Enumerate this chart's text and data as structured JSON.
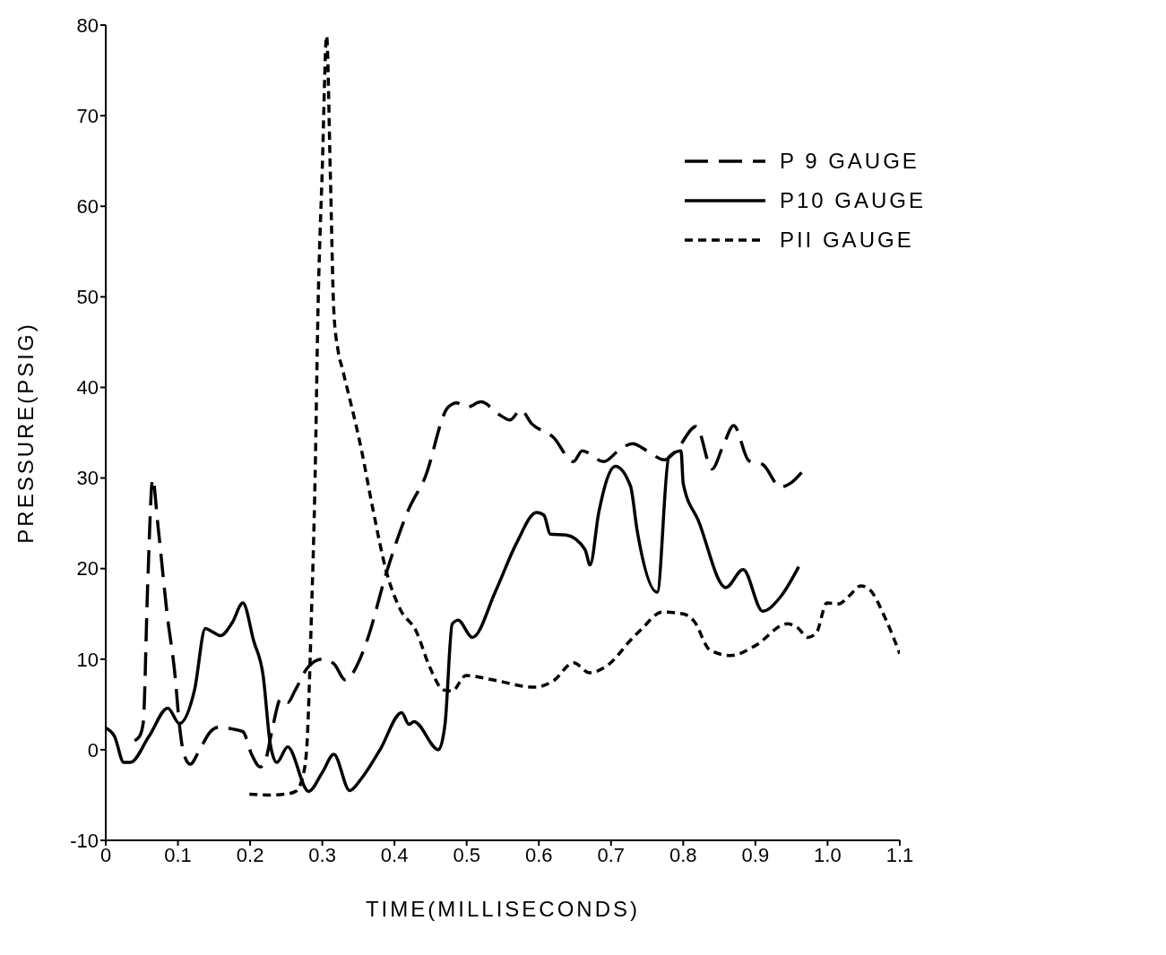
{
  "chart_data": {
    "type": "line",
    "xlabel": "TIME(MILLISECONDS)",
    "ylabel": "PRESSURE(PSIG)",
    "xlim": [
      0,
      1.1
    ],
    "xticks": [
      0,
      0.1,
      0.2,
      0.3,
      0.4,
      0.5,
      0.6,
      0.7,
      0.8,
      0.9,
      {
        "value": 1,
        "label": "1.0"
      },
      1.1
    ],
    "ylim": [
      -10,
      80
    ],
    "yticks": [
      -10,
      0,
      10,
      20,
      30,
      40,
      50,
      60,
      70,
      80
    ],
    "grid": false,
    "legend": "top right",
    "marker": "none",
    "series": [
      {
        "name": "P 9 GAUGE",
        "color": "#000000",
        "line_style": "dashed",
        "x": [
          0.04,
          0.047,
          0.052,
          0.058,
          0.065,
          0.072,
          0.085,
          0.096,
          0.102,
          0.108,
          0.117,
          0.13,
          0.145,
          0.157,
          0.175,
          0.19,
          0.202,
          0.214,
          0.222,
          0.23,
          0.243,
          0.252,
          0.262,
          0.28,
          0.3,
          0.316,
          0.332,
          0.351,
          0.363,
          0.389,
          0.42,
          0.442,
          0.474,
          0.486,
          0.5,
          0.52,
          0.545,
          0.56,
          0.575,
          0.59,
          0.62,
          0.648,
          0.66,
          0.69,
          0.71,
          0.73,
          0.75,
          0.774,
          0.79,
          0.818,
          0.84,
          0.855,
          0.87,
          0.891,
          0.91,
          0.935,
          0.95,
          0.967
        ],
        "values": [
          1,
          1.5,
          3,
          18,
          29.9,
          25,
          15,
          8.2,
          2.8,
          -0.4,
          -1.6,
          0,
          2,
          2.5,
          2.3,
          2,
          -0.5,
          -1.9,
          -1,
          2,
          5.7,
          5.2,
          6.5,
          9.1,
          10,
          9.5,
          7.7,
          9.8,
          12.3,
          19.6,
          26.6,
          30,
          37.8,
          38.3,
          37.8,
          38.4,
          37,
          36.4,
          37.5,
          36,
          34.5,
          31.8,
          33,
          31.8,
          33,
          33.8,
          33,
          32,
          33,
          35.7,
          31,
          33.5,
          35.8,
          31.9,
          31.5,
          29,
          29.5,
          30.9
        ]
      },
      {
        "name": "P10 GAUGE",
        "color": "#000000",
        "line_style": "solid",
        "x": [
          0,
          0.012,
          0.025,
          0.034,
          0.06,
          0.086,
          0.102,
          0.123,
          0.138,
          0.148,
          0.159,
          0.175,
          0.19,
          0.205,
          0.218,
          0.228,
          0.237,
          0.252,
          0.281,
          0.3,
          0.316,
          0.338,
          0.354,
          0.38,
          0.41,
          0.42,
          0.427,
          0.461,
          0.47,
          0.48,
          0.488,
          0.508,
          0.54,
          0.569,
          0.597,
          0.607,
          0.616,
          0.638,
          0.664,
          0.671,
          0.683,
          0.706,
          0.727,
          0.736,
          0.764,
          0.78,
          0.797,
          0.8,
          0.821,
          0.859,
          0.883,
          0.91,
          0.935,
          0.96
        ],
        "values": [
          2.4,
          1.5,
          -1.4,
          -1.4,
          1.5,
          4.6,
          2.9,
          6.6,
          13.4,
          13,
          12.6,
          14,
          16.2,
          12,
          8.2,
          0.6,
          -1.4,
          0.3,
          -4.6,
          -2.5,
          -0.5,
          -4.5,
          -3.2,
          0,
          4.1,
          2.8,
          3.1,
          0,
          2.8,
          13.9,
          14.3,
          12.4,
          17.5,
          22.8,
          26.2,
          25.9,
          23.8,
          23.7,
          22.1,
          20.4,
          26.2,
          31.3,
          29.1,
          24.3,
          17.4,
          32.3,
          33,
          29.4,
          25.3,
          17.9,
          19.9,
          15.3,
          16.9,
          20.2
        ]
      },
      {
        "name": "PII GAUGE",
        "color": "#000000",
        "line_style": "dotted",
        "x": [
          0.199,
          0.225,
          0.249,
          0.263,
          0.271,
          0.278,
          0.285,
          0.29,
          0.294,
          0.3,
          0.306,
          0.311,
          0.316,
          0.322,
          0.328,
          0.354,
          0.37,
          0.389,
          0.408,
          0.43,
          0.449,
          0.468,
          0.48,
          0.499,
          0.537,
          0.594,
          0.62,
          0.648,
          0.67,
          0.698,
          0.726,
          0.742,
          0.771,
          0.8,
          0.815,
          0.837,
          0.866,
          0.9,
          0.944,
          0.958,
          0.973,
          0.985,
          0.999,
          1.015,
          1.03,
          1.046,
          1.058,
          1.08,
          1.1
        ],
        "values": [
          -4.9,
          -5,
          -4.9,
          -4.6,
          -3.5,
          -0.3,
          15,
          30,
          48.4,
          64.2,
          78.8,
          64,
          48.4,
          44,
          42,
          33.2,
          26.6,
          19.6,
          15.5,
          13.1,
          9.1,
          6.6,
          6.5,
          8.2,
          7.7,
          6.9,
          7.6,
          9.6,
          8.5,
          9.5,
          12,
          13.3,
          15.2,
          15,
          14.2,
          11,
          10.4,
          11.5,
          13.9,
          13.5,
          12.4,
          13,
          16.2,
          16.1,
          17,
          18.1,
          17.7,
          14.5,
          10.6
        ]
      }
    ]
  }
}
